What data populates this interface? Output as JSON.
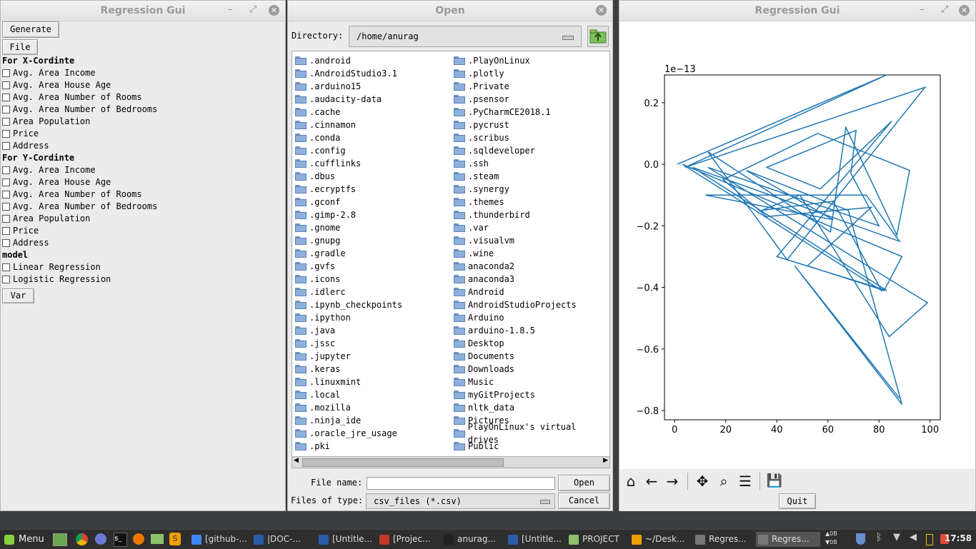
{
  "left_window": {
    "title": "Regression Gui",
    "generate_label": "Generate",
    "file_label": "File",
    "x_heading": "For X-Cordinte",
    "x_options": [
      "Avg. Area Income",
      "Avg. Area House Age",
      "Avg. Area Number of Rooms",
      "Avg. Area Number of Bedrooms",
      "Area Population",
      "Price",
      "Address"
    ],
    "y_heading": "For Y-Cordinte",
    "y_options": [
      "Avg. Area Income",
      "Avg. Area House Age",
      "Avg. Area Number of Rooms",
      "Avg. Area Number of Bedrooms",
      "Area Population",
      "Price",
      "Address"
    ],
    "model_heading": "model",
    "model_options": [
      "Linear Regression",
      "Logistic Regression"
    ],
    "var_label": "Var"
  },
  "open_dialog": {
    "title": "Open",
    "directory_label": "Directory:",
    "directory_value": "/home/anurag",
    "col1": [
      ".android",
      ".AndroidStudio3.1",
      ".arduino15",
      ".audacity-data",
      ".cache",
      ".cinnamon",
      ".conda",
      ".config",
      ".cufflinks",
      ".dbus",
      ".ecryptfs",
      ".gconf",
      ".gimp-2.8",
      ".gnome",
      ".gnupg",
      ".gradle",
      ".gvfs",
      ".icons",
      ".idlerc",
      ".ipynb_checkpoints",
      ".ipython",
      ".java",
      ".jssc",
      ".jupyter",
      ".keras",
      ".linuxmint",
      ".local",
      ".mozilla",
      ".ninja_ide",
      ".oracle_jre_usage",
      ".pki"
    ],
    "col2": [
      ".PlayOnLinux",
      ".plotly",
      ".Private",
      ".psensor",
      ".PyCharmCE2018.1",
      ".pycrust",
      ".scribus",
      ".sqldeveloper",
      ".ssh",
      ".steam",
      ".synergy",
      ".themes",
      ".thunderbird",
      ".var",
      ".visualvm",
      ".wine",
      "anaconda2",
      "anaconda3",
      "Android",
      "AndroidStudioProjects",
      "Arduino",
      "arduino-1.8.5",
      "Desktop",
      "Documents",
      "Downloads",
      "Music",
      "myGitProjects",
      "nltk_data",
      "Pictures",
      "PlayOnLinux's virtual drives",
      "Public"
    ],
    "filename_label": "File name:",
    "filename_value": "",
    "open_label": "Open",
    "filetype_label": "Files of type:",
    "filetype_value": "csv_files (*.csv)",
    "cancel_label": "Cancel"
  },
  "plot_window": {
    "title": "Regression Gui",
    "quit_label": "Quit",
    "toolbar_icons": [
      "home-icon",
      "back-arrow-icon",
      "forward-arrow-icon",
      "pan-icon",
      "zoom-icon",
      "configure-subplots-icon",
      "save-icon"
    ]
  },
  "chart_data": {
    "type": "line",
    "offset_label": "1e−13",
    "xlim": [
      -4,
      104
    ],
    "ylim": [
      -0.83,
      0.29
    ],
    "x_ticks": [
      0,
      20,
      40,
      60,
      80,
      100
    ],
    "x_tick_labels": [
      "0",
      "20",
      "40",
      "60",
      "80",
      "100"
    ],
    "y_ticks": [
      0.2,
      0.0,
      -0.2,
      -0.4,
      -0.6,
      -0.8
    ],
    "y_tick_labels": [
      "0.2",
      "0.0",
      "−0.2",
      "−0.4",
      "−0.6",
      "−0.8"
    ],
    "line_color": "#1f77b4",
    "series": [
      {
        "x": [
          1,
          83,
          4,
          98,
          44,
          13,
          61,
          67,
          87,
          92,
          56,
          19,
          36,
          77,
          52,
          82,
          89,
          3,
          81,
          62,
          34,
          49,
          84,
          99,
          13,
          80,
          69,
          71,
          36,
          57,
          85,
          40,
          83,
          7,
          88,
          75,
          12,
          62,
          28,
          68,
          89,
          47,
          88
        ],
        "y": [
          0.0,
          0.29,
          -0.01,
          0.25,
          -0.31,
          0.04,
          -0.22,
          0.12,
          -0.23,
          -0.02,
          0.1,
          -0.05,
          -0.17,
          -0.14,
          -0.33,
          -0.41,
          -0.3,
          0.0,
          -0.41,
          -0.12,
          -0.15,
          -0.1,
          -0.56,
          -0.45,
          -0.01,
          -0.2,
          -0.03,
          0.11,
          -0.01,
          -0.08,
          0.14,
          -0.3,
          -0.41,
          -0.01,
          -0.25,
          -0.1,
          -0.1,
          -0.18,
          -0.02,
          -0.15,
          -0.78,
          -0.33,
          -0.76
        ]
      }
    ]
  },
  "taskbar": {
    "menu_label": "Menu",
    "items": [
      "[github-...",
      "|DOC-...",
      "[Untitle...",
      "[Projec...",
      "anurag...",
      "[Untitle...",
      "PROJECT",
      "~/Desk...",
      "Regres...",
      "Regres..."
    ],
    "clock": "17:58",
    "net_up": "0B",
    "net_down": "0B"
  }
}
